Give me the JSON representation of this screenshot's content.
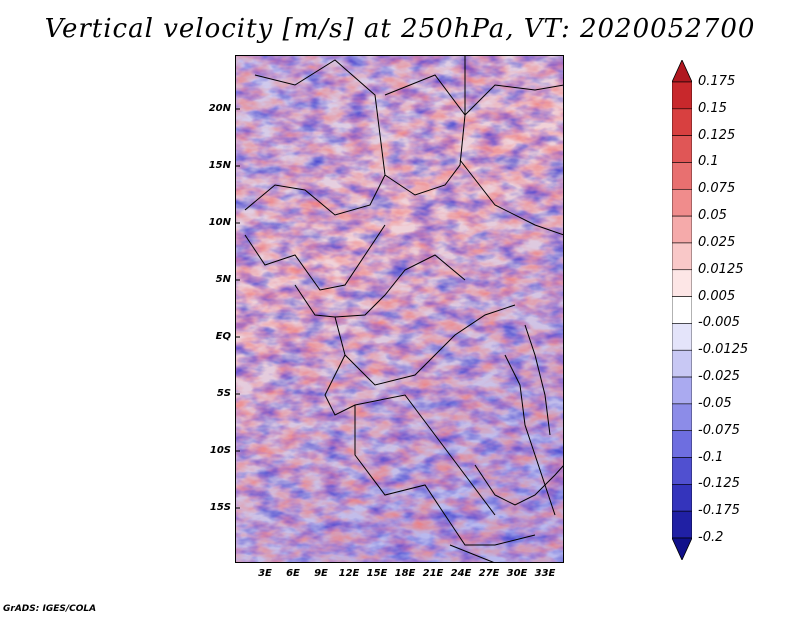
{
  "title": "Vertical velocity [m/s] at 250hPa, VT: 2020052700",
  "map": {
    "variable": "Vertical velocity",
    "units": "m/s",
    "level": "250hPa",
    "valid_time": "2020052700",
    "lat_labels": [
      "20N",
      "15N",
      "10N",
      "5N",
      "EQ",
      "5S",
      "10S",
      "15S"
    ],
    "lon_labels": [
      "3E",
      "6E",
      "9E",
      "12E",
      "15E",
      "18E",
      "21E",
      "24E",
      "27E",
      "30E",
      "33E"
    ],
    "lat_range": [
      -20,
      25
    ],
    "lon_range": [
      0,
      35
    ]
  },
  "colorbar": {
    "labels": [
      "0.175",
      "0.15",
      "0.125",
      "0.1",
      "0.075",
      "0.05",
      "0.025",
      "0.0125",
      "0.005",
      "-0.005",
      "-0.0125",
      "-0.025",
      "-0.05",
      "-0.075",
      "-0.1",
      "-0.125",
      "-0.175",
      "-0.2"
    ],
    "colors": [
      "#b01820",
      "#c8282c",
      "#d84040",
      "#e05656",
      "#e87070",
      "#f08c8c",
      "#f5aaaa",
      "#f9c8c8",
      "#fde6e6",
      "#ffffff",
      "#e4e4fa",
      "#c8c8f4",
      "#aaaaf0",
      "#8c8ce8",
      "#6e6ee0",
      "#5050d0",
      "#3434bc",
      "#2020a4",
      "#10108a"
    ]
  },
  "credit": "GrADS: IGES/COLA"
}
